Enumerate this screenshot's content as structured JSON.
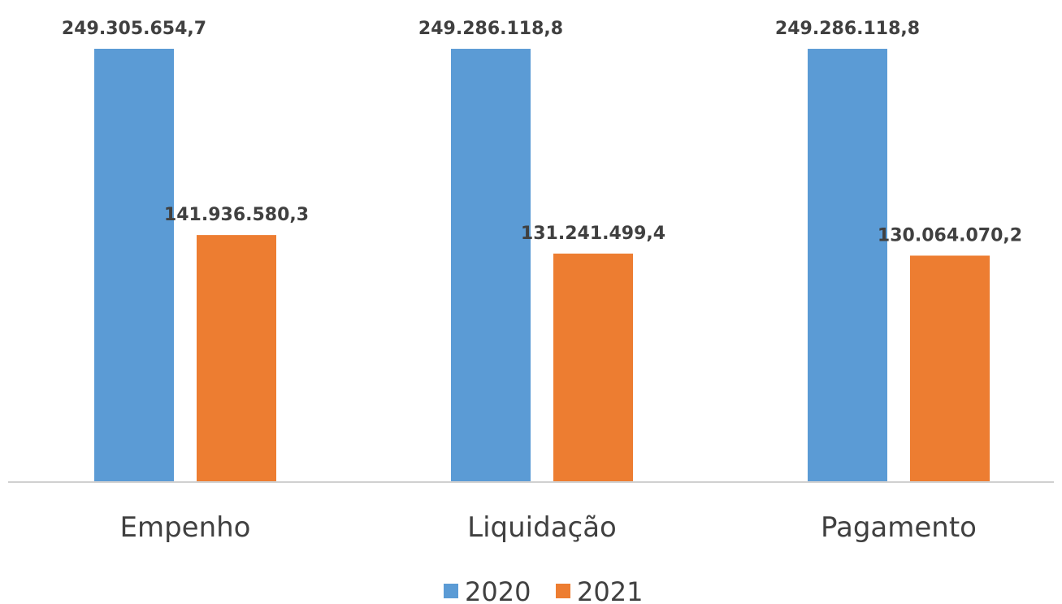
{
  "chart_data": {
    "type": "bar",
    "categories": [
      "Empenho",
      "Liquidação",
      "Pagamento"
    ],
    "series": [
      {
        "name": "2020",
        "color": "#5B9BD5",
        "values": [
          249305654.7,
          249286118.8,
          249286118.8
        ],
        "labels": [
          "249.305.654,7",
          "249.286.118,8",
          "249.286.118,8"
        ]
      },
      {
        "name": "2021",
        "color": "#ED7D31",
        "values": [
          141936580.3,
          131241499.4,
          130064070.2
        ],
        "labels": [
          "141.936.580,3",
          "131.241.499,4",
          "130.064.070,2"
        ]
      }
    ],
    "ylim": [
      0,
      249305654.7
    ],
    "grid": false,
    "legend": "bottom-center"
  }
}
